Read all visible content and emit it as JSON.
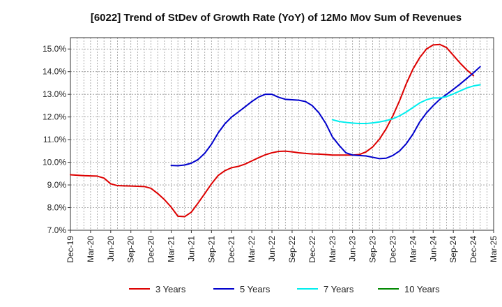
{
  "chart_data": {
    "type": "line",
    "title": "[6022]  Trend of StDev of Growth Rate (YoY) of 12Mo Mov Sum of Revenues",
    "xlabel": "",
    "ylabel": "",
    "ylim": [
      7.0,
      15.5
    ],
    "y_ticks": [
      7.0,
      8.0,
      9.0,
      10.0,
      11.0,
      12.0,
      13.0,
      14.0,
      15.0
    ],
    "y_tick_labels": [
      "7.0%",
      "8.0%",
      "9.0%",
      "10.0%",
      "11.0%",
      "12.0%",
      "13.0%",
      "14.0%",
      "15.0%"
    ],
    "x_tick_labels": [
      "Dec-19",
      "Mar-20",
      "Jun-20",
      "Sep-20",
      "Dec-20",
      "Mar-21",
      "Jun-21",
      "Sep-21",
      "Dec-21",
      "Mar-22",
      "Jun-22",
      "Sep-22",
      "Dec-22",
      "Mar-23",
      "Jun-23",
      "Sep-23",
      "Dec-23",
      "Mar-24",
      "Jun-24",
      "Sep-24",
      "Dec-24",
      "Mar-25"
    ],
    "x_start": "Dec-19",
    "x_count_months": 63,
    "grid": true,
    "legend_position": "bottom",
    "series": [
      {
        "name": "3 Years",
        "color": "#dd0000",
        "start_month_index": 0,
        "values": [
          9.45,
          9.43,
          9.41,
          9.4,
          9.39,
          9.3,
          9.05,
          8.97,
          8.96,
          8.95,
          8.94,
          8.93,
          8.85,
          8.62,
          8.35,
          8.02,
          7.62,
          7.6,
          7.8,
          8.2,
          8.62,
          9.05,
          9.42,
          9.63,
          9.76,
          9.82,
          9.92,
          10.06,
          10.2,
          10.33,
          10.42,
          10.48,
          10.49,
          10.46,
          10.42,
          10.39,
          10.37,
          10.36,
          10.34,
          10.32,
          10.32,
          10.32,
          10.32,
          10.34,
          10.46,
          10.68,
          11.02,
          11.48,
          12.05,
          12.72,
          13.47,
          14.12,
          14.62,
          15.0,
          15.18,
          15.2,
          15.06,
          14.72,
          14.38,
          14.08,
          13.82
        ]
      },
      {
        "name": "5 Years",
        "color": "#0000cc",
        "start_month_index": 15,
        "values": [
          9.86,
          9.85,
          9.88,
          9.96,
          10.12,
          10.4,
          10.8,
          11.3,
          11.7,
          12.0,
          12.22,
          12.45,
          12.68,
          12.88,
          13.0,
          13.0,
          12.87,
          12.78,
          12.76,
          12.74,
          12.68,
          12.5,
          12.18,
          11.72,
          11.12,
          10.75,
          10.42,
          10.32,
          10.3,
          10.28,
          10.22,
          10.16,
          10.18,
          10.3,
          10.5,
          10.82,
          11.25,
          11.78,
          12.18,
          12.5,
          12.78,
          13.0,
          13.22,
          13.45,
          13.7,
          13.95,
          14.22
        ]
      },
      {
        "name": "7 Years",
        "color": "#00eeee",
        "start_month_index": 39,
        "values": [
          11.88,
          11.8,
          11.76,
          11.73,
          11.71,
          11.71,
          11.74,
          11.78,
          11.84,
          11.92,
          12.05,
          12.22,
          12.42,
          12.62,
          12.76,
          12.84,
          12.84,
          12.9,
          13.02,
          13.15,
          13.28,
          13.37,
          13.42
        ]
      },
      {
        "name": "10 Years",
        "color": "#008800",
        "start_month_index": 0,
        "values": []
      }
    ]
  }
}
